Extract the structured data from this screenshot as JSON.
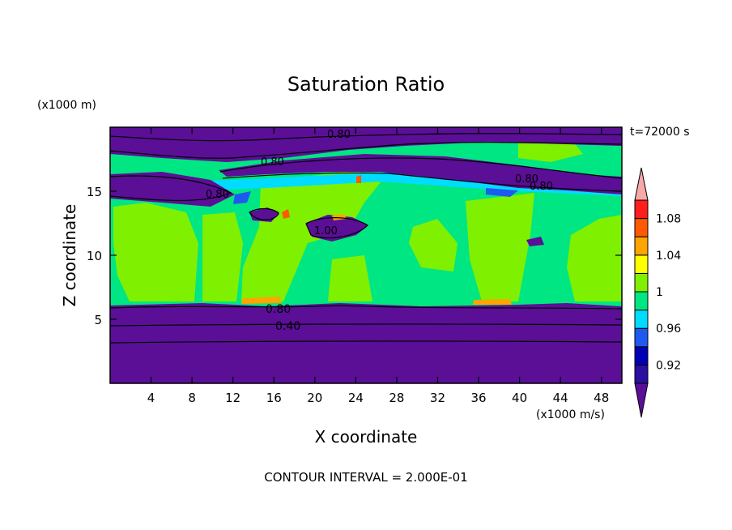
{
  "chart_data": {
    "type": "heatmap",
    "title": "Saturation Ratio",
    "xlabel": "X coordinate",
    "ylabel": "Z coordinate",
    "x_unit": "(x1000 m/s)",
    "y_unit": "(x1000 m)",
    "time_label": "t=72000 s",
    "footer": "CONTOUR INTERVAL = 2.000E-01",
    "xlim": [
      0,
      50
    ],
    "ylim": [
      0,
      20
    ],
    "x_ticks": [
      "4",
      "8",
      "12",
      "16",
      "20",
      "24",
      "28",
      "32",
      "36",
      "40",
      "44",
      "48"
    ],
    "y_ticks": [
      "5",
      "10",
      "15"
    ],
    "colorbar": {
      "levels": [
        0.9,
        0.92,
        0.94,
        0.96,
        0.98,
        1.0,
        1.02,
        1.04,
        1.06,
        1.08,
        1.1
      ],
      "colors": [
        "#5a0f96",
        "#2a0fa0",
        "#0000b4",
        "#1e5af0",
        "#00dcff",
        "#00e682",
        "#7ff000",
        "#ffff00",
        "#ffa500",
        "#ff5a00",
        "#ff1e1e",
        "#f8a8a8"
      ],
      "tick_labels": [
        "0.92",
        "0.96",
        "1",
        "1.04",
        "1.08"
      ]
    },
    "contour_labels": [
      "0.80",
      "0.80",
      "0.80",
      "0.80",
      "0.80",
      "1.00",
      "0.80",
      "0.40"
    ],
    "fields": {
      "lower_layer": {
        "z_range": [
          0,
          6.2
        ],
        "approx_value": "< 0.90"
      },
      "mid_layer": {
        "z_range": [
          6.2,
          15
        ],
        "approx_value": "0.98 - 1.02"
      },
      "upper_layer": {
        "z_range": [
          15,
          20
        ],
        "approx_value": "mostly < 0.90 with bands near 0.98 - 1.00"
      }
    }
  }
}
